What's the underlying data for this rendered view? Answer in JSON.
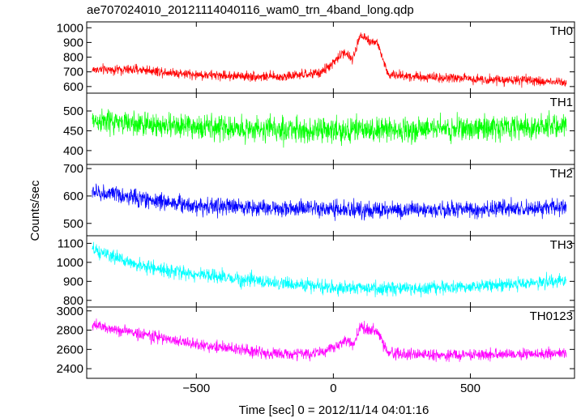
{
  "window": {
    "title": "ae707024010_20121114040116_wam0_trn_4band_long.qdp"
  },
  "chart_data": {
    "type": "line",
    "title": "ae707024010_20121114040116_wam0_trn_4band_long.qdp",
    "xlabel": "Time [sec] 0 = 2012/11/14 04:01:16",
    "ylabel": "Counts/sec",
    "xlim": [
      -900,
      880
    ],
    "x_data_range": [
      -880,
      850
    ],
    "xticks": [
      -500,
      0,
      500
    ],
    "xtick_labels": [
      "−500",
      "0",
      "500"
    ],
    "panels": [
      {
        "name": "TH0",
        "color": "#ff0000",
        "ylim": [
          555,
          1040
        ],
        "yticks": [
          600,
          700,
          800,
          900,
          1000
        ],
        "trend": [
          [
            -880,
            715
          ],
          [
            -700,
            715
          ],
          [
            -500,
            680
          ],
          [
            -200,
            665
          ],
          [
            -50,
            690
          ],
          [
            0,
            760
          ],
          [
            40,
            840
          ],
          [
            70,
            780
          ],
          [
            100,
            960
          ],
          [
            130,
            910
          ],
          [
            160,
            900
          ],
          [
            200,
            680
          ],
          [
            400,
            660
          ],
          [
            850,
            630
          ]
        ],
        "noise": 30
      },
      {
        "name": "TH1",
        "color": "#00ff00",
        "ylim": [
          365,
          545
        ],
        "yticks": [
          400,
          450,
          500
        ],
        "trend": [
          [
            -880,
            475
          ],
          [
            -600,
            462
          ],
          [
            -300,
            455
          ],
          [
            0,
            450
          ],
          [
            300,
            455
          ],
          [
            600,
            458
          ],
          [
            850,
            465
          ]
        ],
        "noise": 28
      },
      {
        "name": "TH2",
        "color": "#0000ff",
        "ylim": [
          455,
          715
        ],
        "yticks": [
          500,
          600,
          700
        ],
        "trend": [
          [
            -880,
            615
          ],
          [
            -700,
            590
          ],
          [
            -500,
            565
          ],
          [
            -200,
            555
          ],
          [
            0,
            550
          ],
          [
            300,
            548
          ],
          [
            600,
            552
          ],
          [
            850,
            560
          ]
        ],
        "noise": 28
      },
      {
        "name": "TH3",
        "color": "#00ffff",
        "ylim": [
          765,
          1140
        ],
        "yticks": [
          800,
          900,
          1000,
          1100
        ],
        "trend": [
          [
            -880,
            1065
          ],
          [
            -700,
            980
          ],
          [
            -500,
            935
          ],
          [
            -200,
            890
          ],
          [
            0,
            868
          ],
          [
            300,
            860
          ],
          [
            600,
            880
          ],
          [
            850,
            905
          ]
        ],
        "noise": 32
      },
      {
        "name": "TH0123",
        "color": "#ff00ff",
        "ylim": [
          2300,
          3040
        ],
        "yticks": [
          2400,
          2600,
          2800,
          3000
        ],
        "trend": [
          [
            -880,
            2850
          ],
          [
            -700,
            2760
          ],
          [
            -500,
            2650
          ],
          [
            -200,
            2550
          ],
          [
            -50,
            2560
          ],
          [
            0,
            2620
          ],
          [
            40,
            2700
          ],
          [
            70,
            2640
          ],
          [
            100,
            2840
          ],
          [
            130,
            2800
          ],
          [
            160,
            2780
          ],
          [
            200,
            2560
          ],
          [
            400,
            2540
          ],
          [
            850,
            2560
          ]
        ],
        "noise": 55
      }
    ]
  }
}
